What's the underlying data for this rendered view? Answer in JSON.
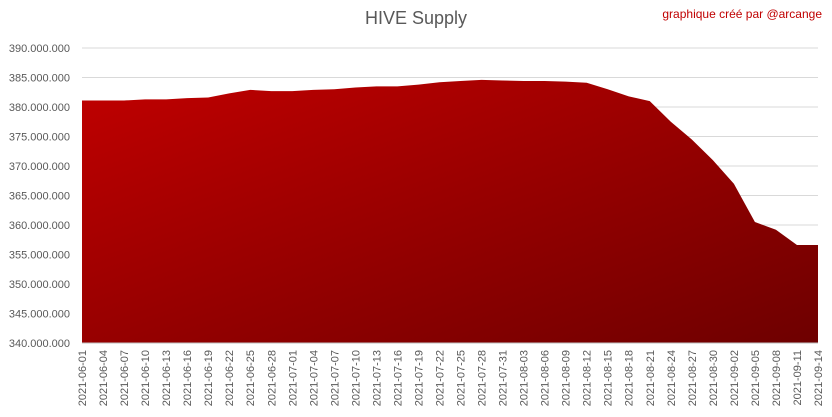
{
  "chart_data": {
    "type": "area",
    "title": "HIVE Supply",
    "annotation": "graphique créé par @arcange",
    "categories": [
      "2021-06-01",
      "2021-06-04",
      "2021-06-07",
      "2021-06-10",
      "2021-06-13",
      "2021-06-16",
      "2021-06-19",
      "2021-06-22",
      "2021-06-25",
      "2021-06-28",
      "2021-07-01",
      "2021-07-04",
      "2021-07-07",
      "2021-07-10",
      "2021-07-13",
      "2021-07-16",
      "2021-07-19",
      "2021-07-22",
      "2021-07-25",
      "2021-07-28",
      "2021-07-31",
      "2021-08-03",
      "2021-08-06",
      "2021-08-09",
      "2021-08-12",
      "2021-08-15",
      "2021-08-18",
      "2021-08-21",
      "2021-08-24",
      "2021-08-27",
      "2021-08-30",
      "2021-09-02",
      "2021-09-05",
      "2021-09-08",
      "2021-09-11",
      "2021-09-14"
    ],
    "values": [
      381100000,
      381100000,
      381100000,
      381300000,
      381300000,
      381500000,
      381600000,
      382300000,
      382900000,
      382700000,
      382700000,
      382900000,
      383000000,
      383300000,
      383500000,
      383500000,
      383800000,
      384200000,
      384400000,
      384600000,
      384500000,
      384400000,
      384400000,
      384300000,
      384100000,
      383000000,
      381800000,
      381000000,
      377500000,
      374500000,
      371000000,
      367000000,
      360500000,
      359200000,
      356600000,
      356600000
    ],
    "color": "#c00000",
    "color_end": "#6e0000",
    "ylim": [
      340000000,
      390000000
    ],
    "yticks": [
      {
        "value": 340000000,
        "label": "340.000.000"
      },
      {
        "value": 345000000,
        "label": "345.000.000"
      },
      {
        "value": 350000000,
        "label": "350.000.000"
      },
      {
        "value": 355000000,
        "label": "355.000.000"
      },
      {
        "value": 360000000,
        "label": "360.000.000"
      },
      {
        "value": 365000000,
        "label": "365.000.000"
      },
      {
        "value": 370000000,
        "label": "370.000.000"
      },
      {
        "value": 375000000,
        "label": "375.000.000"
      },
      {
        "value": 380000000,
        "label": "380.000.000"
      },
      {
        "value": 385000000,
        "label": "385.000.000"
      },
      {
        "value": 390000000,
        "label": "390.000.000"
      }
    ],
    "grid": true
  }
}
